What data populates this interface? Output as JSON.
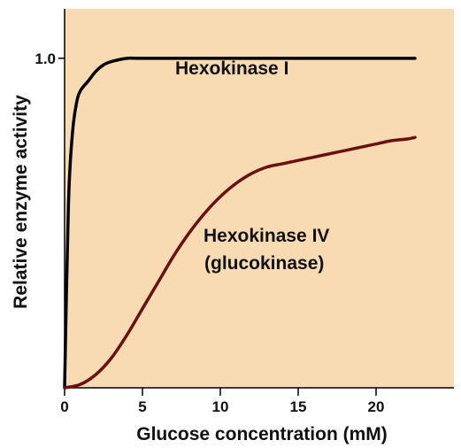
{
  "chart_data": {
    "type": "line",
    "title": "",
    "xlabel": "Glucose concentration (mM)",
    "ylabel": "Relative enzyme activity",
    "xlim": [
      0,
      25
    ],
    "ylim": [
      0,
      1.15
    ],
    "x_ticks": [
      "0",
      "5",
      "10",
      "15",
      "20"
    ],
    "y_ticks": [
      "1.0"
    ],
    "grid": false,
    "colors": {
      "background": "#f8dbb2",
      "hexokinase_1": "#000000",
      "hexokinase_4": "#6b0f0f"
    },
    "series": [
      {
        "label_line1": "Hexokinase I",
        "label_line2": "",
        "x": [
          0,
          0.25,
          0.5,
          0.75,
          1.0,
          1.5,
          2.0,
          2.5,
          3.0,
          4.0,
          5.0,
          10.0,
          15.0,
          20.0,
          22.5
        ],
        "y": [
          0,
          0.56,
          0.77,
          0.86,
          0.9,
          0.93,
          0.96,
          0.98,
          0.99,
          1.0,
          1.0,
          1.0,
          1.0,
          1.0,
          1.0
        ]
      },
      {
        "label_line1": "Hexokinase IV",
        "label_line2": "(glucokinase)",
        "x": [
          0,
          1,
          2,
          3,
          4,
          5,
          6,
          7,
          8,
          9,
          10,
          11,
          12,
          13,
          14,
          15,
          16,
          17,
          18,
          19,
          20,
          21,
          22,
          22.5
        ],
        "y": [
          0,
          0.01,
          0.04,
          0.09,
          0.16,
          0.24,
          0.32,
          0.4,
          0.47,
          0.53,
          0.58,
          0.62,
          0.65,
          0.67,
          0.68,
          0.69,
          0.7,
          0.71,
          0.72,
          0.73,
          0.74,
          0.75,
          0.755,
          0.76
        ]
      }
    ]
  }
}
